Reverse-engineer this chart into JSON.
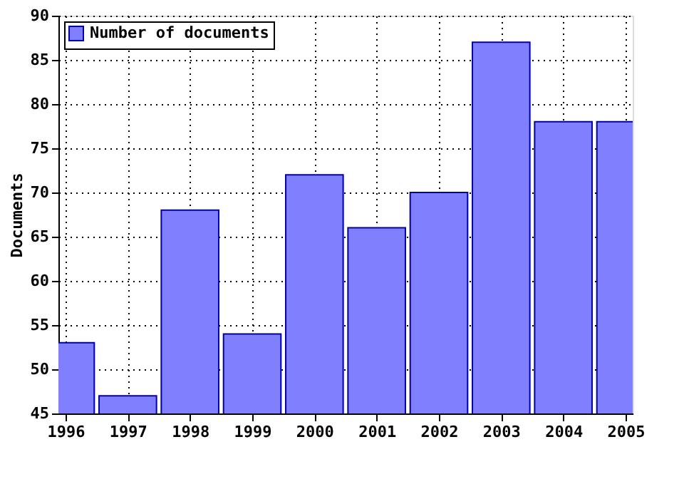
{
  "chart_data": {
    "type": "bar",
    "ylabel": "Documents",
    "x": [
      1996,
      1997,
      1998,
      1999,
      2000,
      2001,
      2002,
      2003,
      2004,
      2005
    ],
    "series": [
      {
        "name": "Number of documents",
        "color": "#8080ff",
        "values": [
          53,
          47,
          68,
          54,
          72,
          66,
          70,
          87,
          78,
          78
        ]
      }
    ],
    "xlim": [
      1996,
      2005
    ],
    "xticks": [
      1996,
      1997,
      1998,
      1999,
      2000,
      2001,
      2002,
      2003,
      2004,
      2005
    ],
    "ylim": [
      45,
      90
    ],
    "yticks": [
      45,
      50,
      55,
      60,
      65,
      70,
      75,
      80,
      85,
      90
    ],
    "grid": true,
    "legend": "top left"
  }
}
